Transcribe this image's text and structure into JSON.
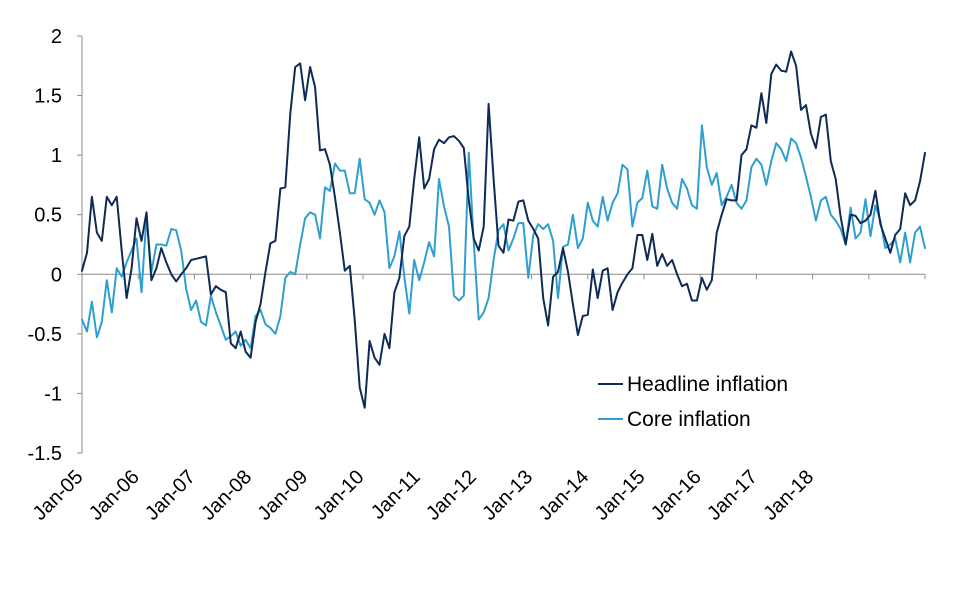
{
  "chart_data": {
    "type": "line",
    "x_start": "Jan-05",
    "x_step": "month",
    "x_ticks": [
      "Jan-05",
      "Jan-06",
      "Jan-07",
      "Jan-08",
      "Jan-09",
      "Jan-10",
      "Jan-11",
      "Jan-12",
      "Jan-13",
      "Jan-14",
      "Jan-15",
      "Jan-16",
      "Jan-17",
      "Jan-18"
    ],
    "y_ticks": [
      "2",
      "1.5",
      "1",
      "0.5",
      "0",
      "-0.5",
      "-1",
      "-1.5"
    ],
    "ylim": [
      -1.5,
      2
    ],
    "grid": false,
    "legend_position": "bottom-right",
    "series": [
      {
        "name": "Headline inflation",
        "color": "#0d2b55",
        "values": [
          0.03,
          0.18,
          0.65,
          0.35,
          0.28,
          0.65,
          0.58,
          0.65,
          0.2,
          -0.2,
          0.05,
          0.47,
          0.28,
          0.52,
          -0.05,
          0.05,
          0.22,
          0.1,
          0.0,
          -0.06,
          0.0,
          0.05,
          0.12,
          0.13,
          0.14,
          0.15,
          -0.17,
          -0.1,
          -0.13,
          -0.15,
          -0.58,
          -0.62,
          -0.48,
          -0.65,
          -0.7,
          -0.4,
          -0.25,
          0.02,
          0.26,
          0.28,
          0.72,
          0.73,
          1.35,
          1.74,
          1.77,
          1.46,
          1.74,
          1.57,
          1.04,
          1.05,
          0.92,
          0.65,
          0.35,
          0.03,
          0.07,
          -0.38,
          -0.95,
          -1.12,
          -0.56,
          -0.7,
          -0.76,
          -0.5,
          -0.62,
          -0.15,
          -0.03,
          0.32,
          0.4,
          0.8,
          1.15,
          0.72,
          0.8,
          1.05,
          1.13,
          1.1,
          1.15,
          1.16,
          1.12,
          1.06,
          0.62,
          0.3,
          0.2,
          0.4,
          1.43,
          0.8,
          0.24,
          0.18,
          0.46,
          0.45,
          0.61,
          0.62,
          0.45,
          0.38,
          0.3,
          -0.2,
          -0.43,
          -0.02,
          0.02,
          0.22,
          0.02,
          -0.25,
          -0.51,
          -0.35,
          -0.34,
          0.04,
          -0.2,
          0.03,
          0.05,
          -0.3,
          -0.15,
          -0.07,
          0.0,
          0.05,
          0.33,
          0.33,
          0.12,
          0.34,
          0.07,
          0.17,
          0.07,
          0.12,
          0.0,
          -0.1,
          -0.08,
          -0.22,
          -0.22,
          -0.03,
          -0.13,
          -0.05,
          0.35,
          0.5,
          0.63,
          0.62,
          0.62,
          1.0,
          1.05,
          1.25,
          1.23,
          1.52,
          1.27,
          1.68,
          1.76,
          1.71,
          1.7,
          1.87,
          1.75,
          1.38,
          1.42,
          1.18,
          1.06,
          1.32,
          1.34,
          0.95,
          0.8,
          0.48,
          0.25,
          0.5,
          0.49,
          0.43,
          0.45,
          0.5,
          0.7,
          0.42,
          0.3,
          0.18,
          0.33,
          0.38,
          0.68,
          0.58,
          0.62,
          0.78,
          1.02
        ]
      },
      {
        "name": "Core inflation",
        "color": "#2f9fd0",
        "values": [
          -0.38,
          -0.48,
          -0.23,
          -0.53,
          -0.4,
          -0.05,
          -0.32,
          0.05,
          -0.02,
          0.1,
          0.2,
          0.3,
          -0.15,
          0.48,
          0.02,
          0.25,
          0.25,
          0.24,
          0.38,
          0.37,
          0.2,
          -0.12,
          -0.3,
          -0.22,
          -0.4,
          -0.43,
          -0.18,
          -0.32,
          -0.43,
          -0.55,
          -0.52,
          -0.48,
          -0.6,
          -0.55,
          -0.62,
          -0.35,
          -0.3,
          -0.42,
          -0.45,
          -0.5,
          -0.35,
          -0.03,
          0.02,
          0.0,
          0.25,
          0.47,
          0.52,
          0.5,
          0.3,
          0.73,
          0.7,
          0.93,
          0.87,
          0.87,
          0.68,
          0.68,
          0.97,
          0.63,
          0.6,
          0.5,
          0.62,
          0.52,
          0.05,
          0.15,
          0.36,
          -0.02,
          -0.33,
          0.12,
          -0.05,
          0.1,
          0.27,
          0.15,
          0.8,
          0.57,
          0.4,
          -0.18,
          -0.22,
          -0.18,
          1.02,
          0.28,
          -0.38,
          -0.32,
          -0.2,
          0.12,
          0.37,
          0.42,
          0.2,
          0.3,
          0.43,
          0.43,
          -0.03,
          0.33,
          0.42,
          0.38,
          0.42,
          0.28,
          -0.2,
          0.23,
          0.25,
          0.5,
          0.22,
          0.3,
          0.6,
          0.45,
          0.4,
          0.65,
          0.45,
          0.6,
          0.68,
          0.92,
          0.88,
          0.4,
          0.6,
          0.64,
          0.87,
          0.57,
          0.55,
          0.92,
          0.72,
          0.6,
          0.55,
          0.8,
          0.72,
          0.58,
          0.55,
          1.25,
          0.9,
          0.75,
          0.85,
          0.58,
          0.65,
          0.75,
          0.6,
          0.55,
          0.62,
          0.9,
          0.97,
          0.92,
          0.75,
          0.95,
          1.1,
          1.05,
          0.95,
          1.14,
          1.1,
          0.98,
          0.82,
          0.65,
          0.45,
          0.62,
          0.65,
          0.5,
          0.45,
          0.38,
          0.25,
          0.56,
          0.3,
          0.35,
          0.63,
          0.32,
          0.58,
          0.45,
          0.22,
          0.25,
          0.3,
          0.1,
          0.35,
          0.1,
          0.35,
          0.4,
          0.22
        ]
      }
    ]
  }
}
